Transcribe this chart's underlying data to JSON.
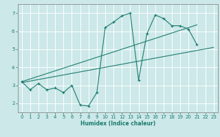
{
  "xlabel": "Humidex (Indice chaleur)",
  "bg_color": "#cce8e8",
  "grid_color": "#ffffff",
  "line_color": "#1a7a6e",
  "xlim": [
    -0.5,
    23.5
  ],
  "ylim": [
    1.5,
    7.5
  ],
  "xticks": [
    0,
    1,
    2,
    3,
    4,
    5,
    6,
    7,
    8,
    9,
    10,
    11,
    12,
    13,
    14,
    15,
    16,
    17,
    18,
    19,
    20,
    21,
    22,
    23
  ],
  "yticks": [
    2,
    3,
    4,
    5,
    6,
    7
  ],
  "main_x": [
    0,
    1,
    2,
    3,
    4,
    5,
    6,
    7,
    8,
    9,
    10,
    11,
    12,
    13,
    14,
    15,
    16,
    17,
    18,
    19,
    20,
    21
  ],
  "main_y": [
    3.2,
    2.75,
    3.1,
    2.75,
    2.85,
    2.6,
    3.0,
    1.9,
    1.85,
    2.6,
    6.2,
    6.5,
    6.85,
    7.0,
    3.3,
    5.85,
    6.9,
    6.7,
    6.3,
    6.3,
    6.1,
    5.25
  ],
  "trend1_x": [
    0,
    21
  ],
  "trend1_y": [
    3.2,
    6.35
  ],
  "trend2_x": [
    0,
    23
  ],
  "trend2_y": [
    3.15,
    5.1
  ]
}
